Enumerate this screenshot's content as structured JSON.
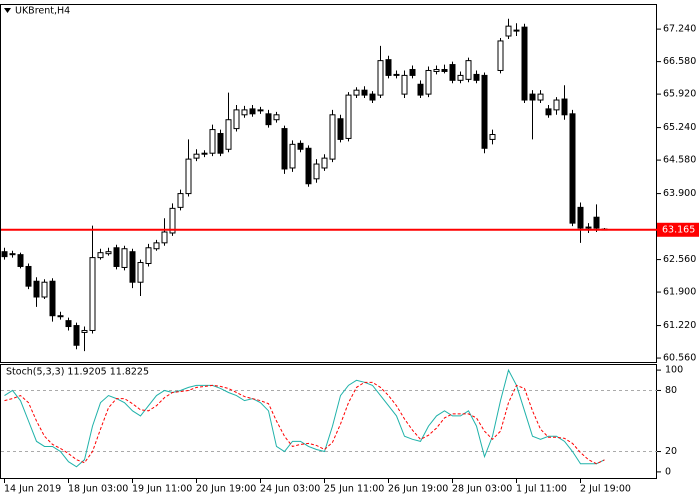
{
  "chart_data": [
    {
      "type": "candlestick",
      "title": "UKBrent,H4",
      "categories": [
        "14 Jun 2019",
        null,
        null,
        null,
        null,
        null,
        null,
        null,
        "18 Jun 03:00",
        null,
        null,
        null,
        null,
        null,
        null,
        null,
        "19 Jun 11:00",
        null,
        null,
        null,
        null,
        null,
        null,
        null,
        "20 Jun 19:00",
        null,
        null,
        null,
        null,
        null,
        null,
        null,
        "24 Jun 03:00",
        null,
        null,
        null,
        null,
        null,
        null,
        null,
        "25 Jun 11:00",
        null,
        null,
        null,
        null,
        null,
        null,
        null,
        "26 Jun 19:00",
        null,
        null,
        null,
        null,
        null,
        null,
        null,
        "28 Jun 03:00",
        null,
        null,
        null,
        null,
        null,
        null,
        null,
        "1 Jul 11:00",
        null,
        null,
        null,
        null,
        null,
        null,
        null,
        "2 Jul 19:00",
        null,
        null,
        null
      ],
      "open": [
        62.72,
        62.66,
        62.66,
        62.42,
        62.12,
        61.8,
        62.12,
        61.42,
        61.32,
        61.22,
        61.08,
        61.12,
        62.6,
        62.68,
        62.8,
        62.4,
        62.72,
        62.1,
        62.48,
        62.78,
        62.9,
        63.1,
        63.62,
        63.9,
        64.62,
        64.7,
        64.72,
        65.12,
        64.8,
        65.22,
        65.5,
        65.62,
        65.58,
        65.52,
        65.4,
        65.22,
        64.42,
        64.92,
        64.82,
        64.2,
        64.42,
        64.6,
        65.42,
        65.02,
        65.9,
        66.0,
        65.92,
        65.9,
        66.62,
        66.3,
        65.92,
        66.42,
        66.12,
        65.92,
        66.38,
        66.42,
        66.52,
        66.2,
        66.22,
        66.32,
        66.3,
        65.0,
        66.4,
        67.1,
        67.22,
        67.28,
        65.92,
        65.8,
        65.62,
        65.6,
        65.82,
        65.52,
        63.62,
        63.22,
        63.42,
        63.18
      ],
      "high": [
        62.8,
        62.74,
        62.7,
        62.48,
        62.2,
        62.16,
        62.18,
        61.5,
        61.38,
        61.28,
        61.2,
        63.25,
        62.78,
        62.8,
        62.86,
        62.84,
        62.78,
        62.56,
        62.88,
        62.96,
        63.4,
        63.7,
        63.98,
        65.0,
        64.8,
        64.78,
        65.3,
        65.2,
        65.95,
        65.7,
        65.68,
        65.7,
        65.66,
        65.6,
        65.56,
        65.28,
        64.98,
        64.98,
        64.88,
        64.6,
        64.7,
        65.6,
        65.5,
        65.96,
        66.06,
        66.08,
        65.98,
        66.9,
        66.7,
        66.4,
        66.4,
        66.5,
        66.2,
        66.48,
        66.5,
        66.52,
        66.58,
        66.38,
        66.66,
        66.4,
        66.36,
        65.2,
        67.06,
        67.45,
        67.36,
        67.35,
        66.0,
        66.0,
        65.7,
        65.86,
        66.1,
        65.6,
        63.72,
        63.3,
        63.68,
        63.2
      ],
      "low": [
        62.56,
        62.6,
        62.38,
        61.96,
        61.6,
        61.76,
        61.3,
        61.34,
        61.12,
        60.74,
        60.7,
        61.06,
        62.56,
        62.64,
        62.36,
        62.34,
        61.98,
        61.82,
        62.42,
        62.74,
        62.84,
        63.04,
        63.56,
        63.84,
        64.56,
        64.64,
        64.66,
        64.66,
        64.74,
        65.16,
        65.44,
        65.46,
        65.52,
        65.24,
        65.34,
        64.3,
        64.34,
        64.74,
        64.04,
        64.12,
        64.36,
        64.54,
        64.94,
        64.96,
        65.84,
        65.84,
        65.74,
        65.84,
        66.24,
        66.24,
        65.84,
        66.24,
        65.84,
        65.86,
        66.32,
        66.34,
        66.14,
        66.14,
        66.16,
        66.14,
        64.72,
        64.9,
        66.34,
        67.04,
        67.1,
        65.74,
        65.0,
        65.74,
        65.44,
        65.5,
        65.4,
        63.24,
        62.9,
        63.1,
        63.12,
        63.15
      ],
      "close": [
        62.62,
        62.68,
        62.42,
        62.02,
        61.8,
        62.1,
        61.42,
        61.4,
        61.2,
        60.82,
        61.12,
        62.6,
        62.7,
        62.72,
        62.42,
        62.78,
        62.1,
        62.5,
        62.8,
        62.9,
        63.12,
        63.6,
        63.9,
        64.6,
        64.7,
        64.72,
        65.2,
        64.72,
        65.4,
        65.6,
        65.6,
        65.52,
        65.6,
        65.3,
        65.5,
        64.4,
        64.9,
        64.8,
        64.1,
        64.5,
        64.62,
        65.5,
        65.0,
        65.9,
        66.0,
        65.9,
        65.8,
        66.6,
        66.3,
        66.32,
        66.3,
        66.3,
        65.9,
        66.4,
        66.42,
        66.38,
        66.2,
        66.3,
        66.6,
        66.2,
        64.82,
        65.1,
        67.0,
        67.3,
        67.2,
        65.8,
        65.8,
        65.92,
        65.5,
        65.8,
        65.5,
        63.3,
        63.2,
        63.2,
        63.2,
        63.165
      ],
      "up_color": "#ffffff",
      "down_color": "#000000",
      "ylim": [
        60.48,
        67.75
      ],
      "yticks": [
        {
          "value": 67.24,
          "label": "67.240"
        },
        {
          "value": 66.58,
          "label": "66.580"
        },
        {
          "value": 65.92,
          "label": "65.920"
        },
        {
          "value": 65.24,
          "label": "65.240"
        },
        {
          "value": 64.58,
          "label": "64.580"
        },
        {
          "value": 63.9,
          "label": "63.900"
        },
        {
          "value": 62.56,
          "label": "62.560"
        },
        {
          "value": 61.9,
          "label": "61.900"
        },
        {
          "value": 61.22,
          "label": "61.220"
        },
        {
          "value": 60.56,
          "label": "60.560"
        }
      ],
      "hline": {
        "value": 63.165,
        "label": "63.165",
        "color": "#ff0000"
      }
    },
    {
      "type": "line",
      "title": "Stoch(5,3,3) 11.9205 11.8225",
      "series": [
        {
          "color": "#20b2aa",
          "dashed": false,
          "values": [
            75,
            80,
            70,
            50,
            30,
            25,
            25,
            20,
            10,
            5,
            12,
            45,
            68,
            75,
            72,
            68,
            60,
            55,
            65,
            75,
            80,
            78,
            80,
            83,
            85,
            85,
            85,
            82,
            78,
            75,
            70,
            72,
            68,
            60,
            25,
            20,
            30,
            30,
            25,
            22,
            20,
            45,
            75,
            85,
            90,
            88,
            85,
            75,
            65,
            55,
            35,
            32,
            30,
            45,
            55,
            60,
            55,
            55,
            60,
            45,
            15,
            35,
            70,
            100,
            85,
            60,
            35,
            32,
            35,
            35,
            30,
            20,
            8,
            8,
            8,
            11.92
          ]
        },
        {
          "color": "#ff0000",
          "dashed": true,
          "values": [
            70,
            72,
            75,
            68,
            50,
            35,
            27,
            23,
            18,
            12,
            9,
            20,
            42,
            63,
            72,
            72,
            67,
            61,
            60,
            65,
            73,
            78,
            79,
            80,
            83,
            84,
            85,
            84,
            82,
            78,
            74,
            72,
            70,
            67,
            50,
            35,
            25,
            27,
            28,
            26,
            22,
            29,
            47,
            68,
            83,
            88,
            88,
            83,
            75,
            65,
            52,
            41,
            32,
            36,
            43,
            53,
            57,
            57,
            57,
            53,
            40,
            32,
            40,
            68,
            85,
            82,
            60,
            42,
            34,
            34,
            33,
            28,
            19,
            12,
            8,
            11.82
          ]
        }
      ],
      "ylim": [
        -6,
        106
      ],
      "yticks": [
        100,
        80,
        20,
        0
      ],
      "grid_lines": [
        80,
        20
      ]
    }
  ]
}
